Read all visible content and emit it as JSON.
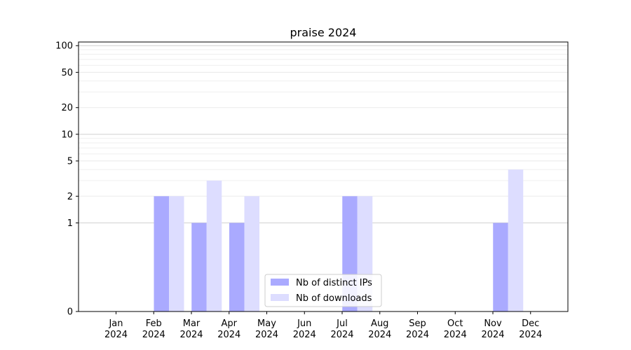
{
  "chart_data": {
    "type": "bar",
    "title": "praise 2024",
    "xlabel": "",
    "ylabel": "",
    "yscale": "symlog",
    "ylim": [
      0,
      110
    ],
    "y_ticks": [
      0,
      1,
      2,
      5,
      10,
      20,
      50,
      100
    ],
    "grid": "y",
    "legend_position": "bottom-center",
    "categories": [
      {
        "month": "Jan",
        "year": "2024"
      },
      {
        "month": "Feb",
        "year": "2024"
      },
      {
        "month": "Mar",
        "year": "2024"
      },
      {
        "month": "Apr",
        "year": "2024"
      },
      {
        "month": "May",
        "year": "2024"
      },
      {
        "month": "Jun",
        "year": "2024"
      },
      {
        "month": "Jul",
        "year": "2024"
      },
      {
        "month": "Aug",
        "year": "2024"
      },
      {
        "month": "Sep",
        "year": "2024"
      },
      {
        "month": "Oct",
        "year": "2024"
      },
      {
        "month": "Nov",
        "year": "2024"
      },
      {
        "month": "Dec",
        "year": "2024"
      }
    ],
    "series": [
      {
        "name": "Nb of distinct IPs",
        "color": "#aaaaff",
        "values": [
          0,
          2,
          1,
          1,
          0,
          0,
          2,
          0,
          0,
          0,
          1,
          0
        ]
      },
      {
        "name": "Nb of downloads",
        "color": "#ddddff",
        "values": [
          0,
          2,
          3,
          2,
          0,
          0,
          2,
          0,
          0,
          0,
          4,
          0
        ]
      }
    ]
  }
}
